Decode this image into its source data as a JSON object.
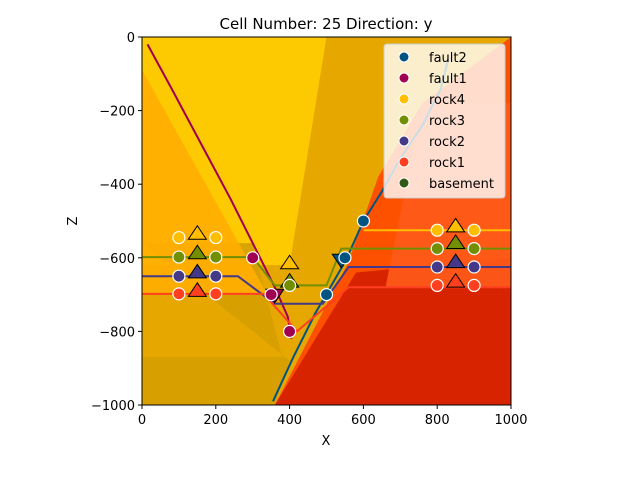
{
  "chart_data": {
    "type": "scatter",
    "title": "Cell Number: 25 Direction: y",
    "xlabel": "X",
    "ylabel": "Z",
    "xlim": [
      0,
      1000
    ],
    "ylim": [
      -1000,
      0
    ],
    "xticks": [
      0,
      200,
      400,
      600,
      800,
      1000
    ],
    "yticks": [
      0,
      -200,
      -400,
      -600,
      -800,
      -1000
    ],
    "xtick_labels": [
      "0",
      "200",
      "400",
      "600",
      "800",
      "1000"
    ],
    "ytick_labels": [
      "0",
      "−200",
      "−400",
      "−600",
      "−800",
      "−1000"
    ],
    "legend_position": "top-right",
    "colors": {
      "fault2": "#015482",
      "fault1": "#9f0052",
      "rock4": "#ffbe00",
      "rock3": "#728f02",
      "rock2": "#443988",
      "rock1": "#ff3f20",
      "basement": "#325916"
    },
    "legend": [
      {
        "name": "fault2",
        "color": "#015482"
      },
      {
        "name": "fault1",
        "color": "#9f0052"
      },
      {
        "name": "rock4",
        "color": "#ffbe00"
      },
      {
        "name": "rock3",
        "color": "#728f02"
      },
      {
        "name": "rock2",
        "color": "#443988"
      },
      {
        "name": "rock1",
        "color": "#ff3f20"
      },
      {
        "name": "basement",
        "color": "#325916"
      }
    ],
    "background_regions": [
      {
        "name": "left-upper-yellow",
        "color": "#ffcc00",
        "points": [
          [
            0,
            0
          ],
          [
            500,
            0
          ],
          [
            400,
            -620
          ],
          [
            0,
            -620
          ]
        ]
      },
      {
        "name": "left-lower-ochre",
        "color": "#d6a000",
        "points": [
          [
            0,
            -560
          ],
          [
            300,
            -560
          ],
          [
            380,
            -870
          ],
          [
            0,
            -870
          ],
          [
            0,
            -1000
          ],
          [
            360,
            -1000
          ],
          [
            400,
            -880
          ]
        ]
      },
      {
        "name": "left-orange-wedge",
        "color": "#ffae00",
        "points": [
          [
            0,
            -90
          ],
          [
            340,
            -700
          ],
          [
            0,
            -700
          ]
        ]
      },
      {
        "name": "right-red",
        "color": "#ff4a00",
        "points": [
          [
            560,
            -610
          ],
          [
            640,
            -380
          ],
          [
            760,
            -180
          ],
          [
            1000,
            0
          ],
          [
            1000,
            -1000
          ],
          [
            360,
            -1000
          ]
        ]
      },
      {
        "name": "right-dark-red",
        "color": "#d42000",
        "points": [
          [
            360,
            -1000
          ],
          [
            580,
            -640
          ],
          [
            1000,
            -600
          ],
          [
            1000,
            -1000
          ]
        ]
      },
      {
        "name": "right-upper-band",
        "color": "#ff5a1a",
        "points": [
          [
            760,
            -180
          ],
          [
            1000,
            -180
          ],
          [
            1000,
            -680
          ],
          [
            660,
            -680
          ]
        ]
      }
    ],
    "series": [
      {
        "name": "fault2",
        "kind": "line",
        "color": "#015482",
        "x": [
          355,
          410,
          470,
          545,
          560,
          600,
          650,
          700,
          760,
          810,
          830
        ],
        "y": [
          -990,
          -870,
          -750,
          -620,
          -590,
          -500,
          -420,
          -330,
          -240,
          -140,
          -60
        ]
      },
      {
        "name": "fault1",
        "kind": "line",
        "color": "#9f0052",
        "x": [
          15,
          80,
          160,
          240,
          300,
          360,
          395,
          405
        ],
        "y": [
          -20,
          -140,
          -290,
          -440,
          -560,
          -680,
          -760,
          -820
        ]
      },
      {
        "name": "rock4",
        "kind": "line",
        "color": "#ffbe00",
        "x": [
          600,
          1000
        ],
        "y": [
          -525,
          -525
        ]
      },
      {
        "name": "rock3",
        "kind": "line",
        "color": "#728f02",
        "x": [
          0,
          300,
          360,
          500,
          540,
          1000
        ],
        "y": [
          -598,
          -598,
          -675,
          -675,
          -575,
          -575
        ]
      },
      {
        "name": "rock2",
        "kind": "line",
        "color": "#443988",
        "x": [
          0,
          260,
          360,
          490,
          560,
          1000
        ],
        "y": [
          -650,
          -650,
          -725,
          -725,
          -625,
          -625
        ]
      },
      {
        "name": "rock1",
        "kind": "line",
        "color": "#ff3f20",
        "x": [
          0,
          330,
          420,
          560,
          1000
        ],
        "y": [
          -698,
          -698,
          -800,
          -680,
          -680
        ]
      },
      {
        "name": "fault2",
        "kind": "points",
        "color": "#015482",
        "x": [
          500,
          550,
          600
        ],
        "y": [
          -700,
          -600,
          -500
        ]
      },
      {
        "name": "fault1",
        "kind": "points",
        "color": "#9f0052",
        "x": [
          300,
          350,
          400
        ],
        "y": [
          -600,
          -700,
          -800
        ]
      },
      {
        "name": "rock4",
        "kind": "points",
        "color": "#ffbe00",
        "x": [
          100,
          200,
          800,
          900
        ],
        "y": [
          -545,
          -545,
          -525,
          -525
        ]
      },
      {
        "name": "rock3",
        "kind": "points",
        "color": "#728f02",
        "x": [
          100,
          200,
          800,
          900,
          400
        ],
        "y": [
          -598,
          -598,
          -575,
          -575,
          -675
        ]
      },
      {
        "name": "rock2",
        "kind": "points",
        "color": "#443988",
        "x": [
          100,
          200,
          800,
          900
        ],
        "y": [
          -650,
          -650,
          -625,
          -625
        ]
      },
      {
        "name": "rock1",
        "kind": "points",
        "color": "#ff3f20",
        "x": [
          100,
          200,
          800,
          900
        ],
        "y": [
          -698,
          -698,
          -675,
          -675
        ]
      }
    ],
    "orientations": [
      {
        "x": 150,
        "y": -535,
        "color": "#ffbe00",
        "dir": "up"
      },
      {
        "x": 150,
        "y": -588,
        "color": "#728f02",
        "dir": "up"
      },
      {
        "x": 150,
        "y": -640,
        "color": "#443988",
        "dir": "up"
      },
      {
        "x": 150,
        "y": -690,
        "color": "#ff3f20",
        "dir": "up"
      },
      {
        "x": 400,
        "y": -615,
        "color": "#ffbe00",
        "dir": "up"
      },
      {
        "x": 400,
        "y": -665,
        "color": "#728f02",
        "dir": "up"
      },
      {
        "x": 850,
        "y": -515,
        "color": "#ffbe00",
        "dir": "up"
      },
      {
        "x": 850,
        "y": -560,
        "color": "#728f02",
        "dir": "up"
      },
      {
        "x": 850,
        "y": -612,
        "color": "#443988",
        "dir": "up"
      },
      {
        "x": 850,
        "y": -665,
        "color": "#ff3f20",
        "dir": "up"
      },
      {
        "x": 540,
        "y": -605,
        "color": "#015482",
        "dir": "down"
      },
      {
        "x": 360,
        "y": -700,
        "color": "#9f0052",
        "dir": "down"
      }
    ]
  }
}
